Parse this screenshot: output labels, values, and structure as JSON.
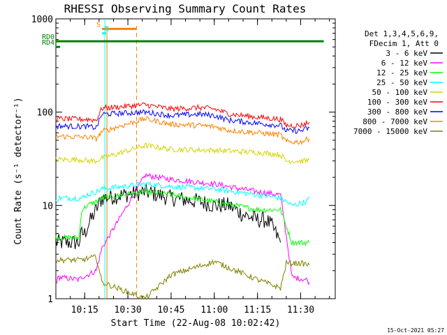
{
  "chart_data": {
    "type": "line",
    "title": "RHESSI Observing Summary Count Rates",
    "xlabel": "Start Time (22-Aug-08 10:02:42)",
    "ylabel": "Count Rate (s⁻¹ detector⁻¹)",
    "y_scale": "log",
    "ylim": [
      1,
      1000
    ],
    "xlim": [
      "10:05",
      "11:42"
    ],
    "x_ticks": [
      "10:15",
      "10:30",
      "10:45",
      "11:00",
      "11:15",
      "11:30"
    ],
    "y_ticks": [
      "1",
      "10",
      "100",
      "1000"
    ],
    "grid": false,
    "legend_position": "right",
    "legend_header": [
      "Det 1,3,4,5,6,9,",
      "FDecim 1, Att 0"
    ],
    "footer_date": "15-Oct-2021 05:27",
    "data_gap": [
      "10:22",
      "10:33"
    ],
    "series": [
      {
        "name": "3 - 6 keV",
        "color": "#000000",
        "x": [
          "10:05",
          "10:06",
          "10:13",
          "10:14",
          "10:15",
          "10:16",
          "10:19",
          "10:21",
          "10:36",
          "10:45",
          "10:55",
          "11:00",
          "11:05",
          "11:10",
          "11:15",
          "11:17",
          "11:18",
          "11:20",
          "11:23"
        ],
        "values": [
          4,
          4,
          4,
          5,
          5,
          6,
          9,
          12,
          14,
          12,
          11,
          10,
          10,
          8,
          7,
          7,
          7,
          6,
          4
        ]
      },
      {
        "name": "6 - 12 keV",
        "color": "#ff00ff",
        "x": [
          "10:05",
          "10:06",
          "10:13",
          "10:14",
          "10:16",
          "10:19",
          "10:21",
          "10:36",
          "10:45",
          "11:00",
          "11:15",
          "11:23",
          "11:27",
          "11:32",
          "11:33"
        ],
        "values": [
          1.5,
          1.7,
          1.6,
          1.7,
          1.8,
          2.0,
          3.5,
          21,
          19,
          17,
          14,
          13,
          1.7,
          1.6,
          1.5
        ]
      },
      {
        "name": "12 - 25 keV",
        "color": "#00ff00",
        "x": [
          "10:05",
          "10:06",
          "10:13",
          "10:14",
          "10:16",
          "10:19",
          "10:21",
          "10:36",
          "10:45",
          "11:00",
          "11:15",
          "11:23",
          "11:27",
          "11:32",
          "11:33"
        ],
        "values": [
          4.5,
          4.5,
          4.5,
          9,
          10,
          11,
          12,
          14,
          13,
          11,
          9,
          9,
          4,
          4,
          4
        ]
      },
      {
        "name": "25 - 50 keV",
        "color": "#00ffff",
        "x": [
          "10:05",
          "10:06",
          "10:14",
          "10:16",
          "10:19",
          "10:21",
          "10:36",
          "10:45",
          "11:00",
          "11:15",
          "11:23",
          "11:27",
          "11:32",
          "11:33"
        ],
        "values": [
          11,
          12,
          12,
          13,
          14,
          15,
          17,
          16,
          15,
          13,
          12,
          10,
          11,
          12
        ]
      },
      {
        "name": "50 - 100 keV",
        "color": "#d4d400",
        "x": [
          "10:05",
          "10:06",
          "10:14",
          "10:16",
          "10:19",
          "10:21",
          "10:36",
          "10:45",
          "11:00",
          "11:15",
          "11:23",
          "11:25",
          "11:32",
          "11:33"
        ],
        "values": [
          31,
          31,
          31,
          30,
          30,
          32,
          44,
          40,
          39,
          37,
          35,
          30,
          30,
          31
        ]
      },
      {
        "name": "100 - 300 keV",
        "color": "#ff0000",
        "x": [
          "10:05",
          "10:06",
          "10:14",
          "10:16",
          "10:19",
          "10:21",
          "10:36",
          "10:45",
          "10:55",
          "11:00",
          "11:05",
          "11:15",
          "11:23",
          "11:25",
          "11:30",
          "11:33"
        ],
        "values": [
          84,
          85,
          84,
          84,
          82,
          110,
          120,
          108,
          112,
          108,
          96,
          88,
          84,
          72,
          72,
          78
        ]
      },
      {
        "name": "300 - 800 keV",
        "color": "#0000ff",
        "x": [
          "10:05",
          "10:06",
          "10:14",
          "10:16",
          "10:19",
          "10:21",
          "10:36",
          "10:45",
          "10:55",
          "11:00",
          "11:05",
          "11:15",
          "11:23",
          "11:25",
          "11:30",
          "11:33"
        ],
        "values": [
          70,
          71,
          70,
          70,
          68,
          95,
          100,
          92,
          95,
          92,
          82,
          76,
          72,
          63,
          63,
          68
        ]
      },
      {
        "name": "800 - 7000 keV",
        "color": "#ff8000",
        "x": [
          "10:05",
          "10:06",
          "10:14",
          "10:16",
          "10:19",
          "10:21",
          "10:36",
          "10:45",
          "10:55",
          "11:00",
          "11:05",
          "11:15",
          "11:23",
          "11:25",
          "11:30",
          "11:33"
        ],
        "values": [
          54,
          55,
          54,
          54,
          52,
          62,
          85,
          74,
          72,
          70,
          64,
          60,
          57,
          48,
          48,
          52
        ]
      },
      {
        "name": "7000 - 15000 keV",
        "color": "#808000",
        "x": [
          "10:05",
          "10:06",
          "10:14",
          "10:16",
          "10:19",
          "10:21",
          "10:36",
          "10:45",
          "11:00",
          "11:15",
          "11:23",
          "11:25",
          "11:30",
          "11:33"
        ],
        "values": [
          2.5,
          2.6,
          2.6,
          2.7,
          2.8,
          1.5,
          1.0,
          1.8,
          2.5,
          1.6,
          1.3,
          2.4,
          2.4,
          2.3
        ]
      }
    ],
    "annotations": [
      {
        "label": "S",
        "color": "#ff8000",
        "x_start": "10:21",
        "x_end": "10:33",
        "y": 780
      },
      {
        "label": "N",
        "color": "#00ffff",
        "x_start": "10:21",
        "x_end": "10:21",
        "y": 700
      },
      {
        "label": "RD0",
        "color": "#008000",
        "x_start": "10:02",
        "x_end": "11:38",
        "y": 575
      },
      {
        "label": "RD4",
        "color": "#008000",
        "x_start": "10:05",
        "x_end": "10:06",
        "y": 500
      }
    ]
  }
}
